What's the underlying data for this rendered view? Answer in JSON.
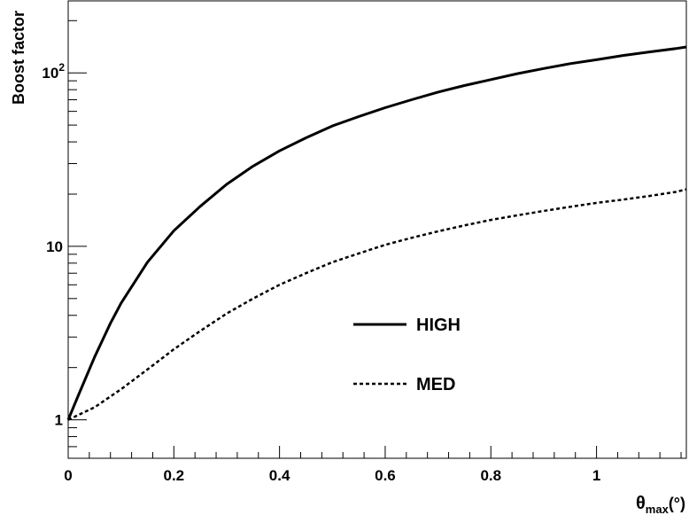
{
  "chart_data": {
    "type": "line",
    "title": "",
    "xlabel": "θ_max(°)",
    "xlabel_main": "θ",
    "xlabel_sub": "max",
    "xlabel_unit": "(°)",
    "ylabel": "Boost factor",
    "xlim": [
      0,
      1.17
    ],
    "ylim": [
      0.6,
      260
    ],
    "yscale": "log",
    "grid": false,
    "legend_position": "center-right",
    "x_ticks": [
      {
        "value": 0,
        "label": "0"
      },
      {
        "value": 0.2,
        "label": "0.2"
      },
      {
        "value": 0.4,
        "label": "0.4"
      },
      {
        "value": 0.6,
        "label": "0.6"
      },
      {
        "value": 0.8,
        "label": "0.8"
      },
      {
        "value": 1,
        "label": "1"
      }
    ],
    "y_ticks": [
      {
        "value": 1,
        "label": "1",
        "exp": ""
      },
      {
        "value": 10,
        "label": "10",
        "exp": ""
      },
      {
        "value": 100,
        "label": "10",
        "exp": "2"
      }
    ],
    "series": [
      {
        "name": "HIGH",
        "style": "solid",
        "x": [
          0,
          0.02,
          0.05,
          0.08,
          0.1,
          0.15,
          0.2,
          0.25,
          0.3,
          0.35,
          0.4,
          0.45,
          0.5,
          0.55,
          0.6,
          0.65,
          0.7,
          0.75,
          0.8,
          0.85,
          0.9,
          0.95,
          1.0,
          1.05,
          1.1,
          1.15,
          1.17
        ],
        "y": [
          1.0,
          1.4,
          2.3,
          3.6,
          4.7,
          8.1,
          12.3,
          17.0,
          22.8,
          29.0,
          35.5,
          42.2,
          49.4,
          56.0,
          63.0,
          70.0,
          77.5,
          84.5,
          91.5,
          99.0,
          106,
          113,
          119,
          126,
          132,
          138,
          141
        ]
      },
      {
        "name": "MED",
        "style": "dashed",
        "x": [
          0,
          0.05,
          0.1,
          0.15,
          0.2,
          0.25,
          0.3,
          0.35,
          0.4,
          0.45,
          0.5,
          0.55,
          0.6,
          0.65,
          0.7,
          0.75,
          0.8,
          0.85,
          0.9,
          0.95,
          1.0,
          1.05,
          1.1,
          1.15,
          1.17
        ],
        "y": [
          1.0,
          1.18,
          1.5,
          1.95,
          2.55,
          3.25,
          4.1,
          5.0,
          6.0,
          7.0,
          8.1,
          9.1,
          10.2,
          11.2,
          12.2,
          13.2,
          14.2,
          15.1,
          16.0,
          16.9,
          17.8,
          18.6,
          19.5,
          20.6,
          21.3
        ]
      }
    ]
  }
}
